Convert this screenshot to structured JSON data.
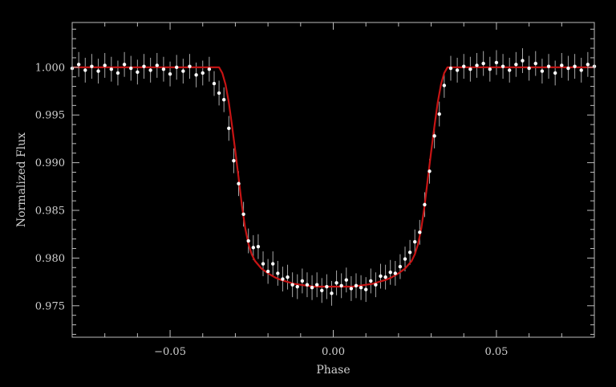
{
  "colors": {
    "background": "#000000",
    "axes": "#bdbdbd",
    "data_points": "#ffffff",
    "error_bars": "#a8a8a8",
    "model_line": "#c81414"
  },
  "chart_data": {
    "type": "scatter",
    "title": "",
    "xlabel": "Phase",
    "ylabel": "Normalized Flux",
    "xlim": [
      -0.08,
      0.08
    ],
    "ylim": [
      0.9717,
      1.0047
    ],
    "xticks": [
      -0.05,
      0.0,
      0.05
    ],
    "xtick_labels": [
      "−0.05",
      "0.00",
      "0.05"
    ],
    "yticks": [
      0.975,
      0.98,
      0.985,
      0.99,
      0.995,
      1.0
    ],
    "ytick_labels": [
      "0.975",
      "0.980",
      "0.985",
      "0.990",
      "0.995",
      "1.000"
    ],
    "grid": false,
    "series": [
      {
        "kind": "data",
        "error_bar": 0.0013,
        "x": [
          -0.08,
          -0.078,
          -0.076,
          -0.074,
          -0.072,
          -0.07,
          -0.068,
          -0.066,
          -0.064,
          -0.062,
          -0.06,
          -0.058,
          -0.056,
          -0.054,
          -0.052,
          -0.05,
          -0.048,
          -0.046,
          -0.044,
          -0.042,
          -0.04,
          -0.038,
          -0.0365,
          -0.035,
          -0.0335,
          -0.032,
          -0.0305,
          -0.029,
          -0.0275,
          -0.026,
          -0.0245,
          -0.023,
          -0.0215,
          -0.02,
          -0.0185,
          -0.017,
          -0.0155,
          -0.014,
          -0.0125,
          -0.011,
          -0.0095,
          -0.008,
          -0.0065,
          -0.005,
          -0.0035,
          -0.002,
          -0.0005,
          0.001,
          0.0025,
          0.004,
          0.0055,
          0.007,
          0.0085,
          0.01,
          0.0115,
          0.013,
          0.0145,
          0.016,
          0.0175,
          0.019,
          0.0205,
          0.022,
          0.0235,
          0.025,
          0.0265,
          0.028,
          0.0295,
          0.031,
          0.0325,
          0.034,
          0.036,
          0.038,
          0.04,
          0.042,
          0.044,
          0.046,
          0.048,
          0.05,
          0.052,
          0.054,
          0.056,
          0.058,
          0.06,
          0.062,
          0.064,
          0.066,
          0.068,
          0.07,
          0.072,
          0.074,
          0.076,
          0.078,
          0.08
        ],
        "y": [
          0.9999,
          1.0003,
          0.9997,
          1.0001,
          0.9996,
          1.0002,
          0.9998,
          0.9994,
          1.0003,
          0.9999,
          0.9995,
          1.0001,
          0.9997,
          1.0002,
          0.9998,
          0.9993,
          1.0,
          0.9996,
          1.0001,
          0.9992,
          0.9994,
          0.9998,
          0.9983,
          0.9973,
          0.9966,
          0.9936,
          0.9902,
          0.9878,
          0.9846,
          0.9818,
          0.9811,
          0.9812,
          0.9794,
          0.9786,
          0.9794,
          0.9784,
          0.9778,
          0.978,
          0.9772,
          0.977,
          0.9776,
          0.9772,
          0.9769,
          0.9772,
          0.9766,
          0.977,
          0.9763,
          0.9774,
          0.9771,
          0.9777,
          0.9768,
          0.9771,
          0.9769,
          0.9767,
          0.9776,
          0.9772,
          0.9781,
          0.978,
          0.9785,
          0.9784,
          0.9791,
          0.9799,
          0.9806,
          0.9817,
          0.9827,
          0.9856,
          0.9891,
          0.9928,
          0.9951,
          0.9981,
          0.9999,
          0.9997,
          1.0001,
          0.9998,
          1.0002,
          1.0004,
          0.9998,
          1.0005,
          1.0001,
          0.9997,
          1.0003,
          1.0007,
          0.9999,
          1.0004,
          0.9996,
          1.0001,
          0.9994,
          1.0002,
          0.9999,
          1.0001,
          0.9997,
          1.0003,
          1.0001
        ]
      },
      {
        "kind": "model",
        "x": [
          -0.08,
          -0.035,
          -0.034,
          -0.033,
          -0.032,
          -0.031,
          -0.03,
          -0.029,
          -0.028,
          -0.027,
          -0.026,
          -0.025,
          -0.024,
          -0.022,
          -0.02,
          -0.018,
          -0.016,
          -0.014,
          -0.012,
          -0.01,
          -0.008,
          -0.006,
          -0.004,
          -0.002,
          0.0,
          0.002,
          0.004,
          0.006,
          0.008,
          0.01,
          0.012,
          0.014,
          0.016,
          0.018,
          0.02,
          0.022,
          0.024,
          0.025,
          0.026,
          0.027,
          0.028,
          0.029,
          0.03,
          0.031,
          0.032,
          0.033,
          0.034,
          0.035,
          0.08
        ],
        "y": [
          1.0,
          1.0,
          0.9994,
          0.9982,
          0.9963,
          0.9938,
          0.9912,
          0.9884,
          0.9855,
          0.9832,
          0.9815,
          0.9804,
          0.9797,
          0.9789,
          0.9784,
          0.978,
          0.9777,
          0.9775,
          0.9773,
          0.9772,
          0.9771,
          0.977,
          0.977,
          0.977,
          0.977,
          0.977,
          0.977,
          0.977,
          0.9771,
          0.9772,
          0.9773,
          0.9775,
          0.9777,
          0.978,
          0.9784,
          0.9789,
          0.9797,
          0.9804,
          0.9815,
          0.9832,
          0.9855,
          0.9884,
          0.9912,
          0.9938,
          0.9963,
          0.9982,
          0.9994,
          1.0,
          1.0
        ]
      }
    ]
  }
}
